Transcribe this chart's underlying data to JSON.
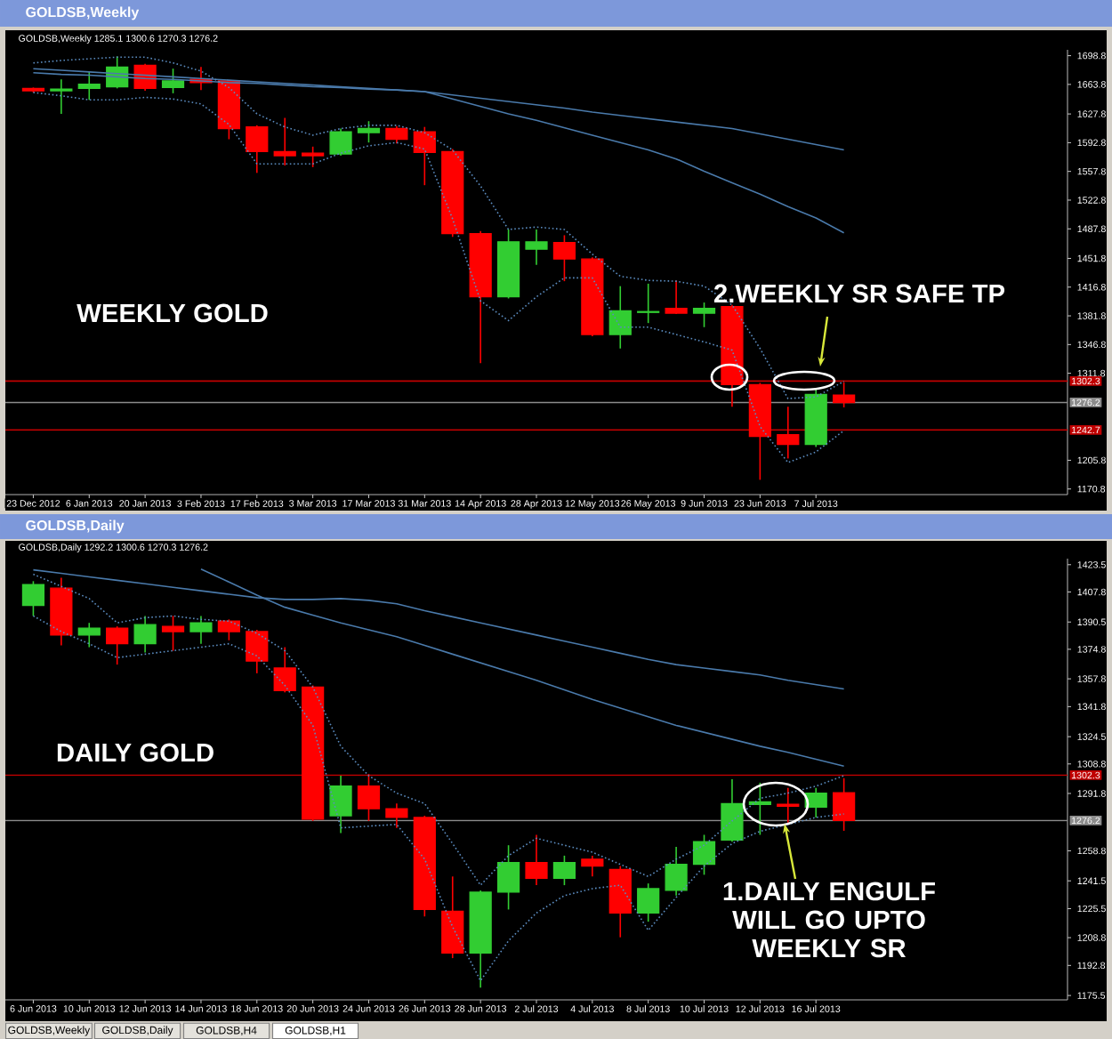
{
  "chart_data": [
    {
      "type": "candlestick",
      "title": "GOLDSB,Weekly",
      "subtitle": "GOLDSB,Weekly  1285.1 1300.6 1270.3 1276.2",
      "categories": [
        "23 Dec 2012",
        null,
        "6 Jan 2013",
        null,
        "20 Jan 2013",
        null,
        "3 Feb 2013",
        null,
        "17 Feb 2013",
        null,
        "3 Mar 2013",
        null,
        "17 Mar 2013",
        null,
        "31 Mar 2013",
        null,
        "14 Apr 2013",
        null,
        "28 Apr 2013",
        null,
        "12 May 2013",
        null,
        "26 May 2013",
        null,
        "9 Jun 2013",
        null,
        "23 Jun 2013",
        null,
        "7 Jul 2013",
        null
      ],
      "ohlc": [
        [
          1659,
          1660,
          1654,
          1656
        ],
        [
          1656,
          1670,
          1628,
          1658
        ],
        [
          1659,
          1679,
          1645,
          1664
        ],
        [
          1661,
          1698,
          1659,
          1685
        ],
        [
          1687,
          1689,
          1656,
          1659
        ],
        [
          1660,
          1683,
          1653,
          1668
        ],
        [
          1670,
          1685,
          1657,
          1666
        ],
        [
          1668,
          1669,
          1597,
          1610
        ],
        [
          1612,
          1614,
          1556,
          1582
        ],
        [
          1582,
          1623,
          1565,
          1577
        ],
        [
          1580,
          1588,
          1563,
          1577
        ],
        [
          1579,
          1610,
          1577,
          1606
        ],
        [
          1605,
          1619,
          1593,
          1610
        ],
        [
          1610,
          1613,
          1592,
          1597
        ],
        [
          1606,
          1612,
          1541,
          1581
        ],
        [
          1582,
          1585,
          1478,
          1482
        ],
        [
          1482,
          1485,
          1324,
          1405
        ],
        [
          1405,
          1487,
          1403,
          1472
        ],
        [
          1463,
          1487,
          1444,
          1472
        ],
        [
          1471,
          1480,
          1424,
          1451
        ],
        [
          1451,
          1453,
          1357,
          1359
        ],
        [
          1359,
          1418,
          1342,
          1388
        ],
        [
          1386,
          1421,
          1373,
          1387
        ],
        [
          1391,
          1425,
          1384,
          1385
        ],
        [
          1385,
          1398,
          1368,
          1391
        ],
        [
          1393,
          1395,
          1271,
          1298
        ],
        [
          1298,
          1300,
          1182,
          1235
        ],
        [
          1237,
          1271,
          1208,
          1225
        ],
        [
          1225,
          1292,
          1222,
          1286
        ],
        [
          1285.1,
          1300.6,
          1270.3,
          1276.2
        ]
      ],
      "colors": [
        "#ff0000",
        "#32cd32",
        "#32cd32",
        "#32cd32",
        "#ff0000",
        "#32cd32",
        "#ff0000",
        "#ff0000",
        "#ff0000",
        "#ff0000",
        "#ff0000",
        "#32cd32",
        "#32cd32",
        "#ff0000",
        "#ff0000",
        "#ff0000",
        "#ff0000",
        "#32cd32",
        "#32cd32",
        "#ff0000",
        "#ff0000",
        "#32cd32",
        "#32cd32",
        "#ff0000",
        "#32cd32",
        "#ff0000",
        "#ff0000",
        "#ff0000",
        "#32cd32",
        "#ff0000"
      ],
      "series": [
        {
          "type": "line",
          "color": "#4a7aab",
          "line_style": "solid",
          "values": [
            1683,
            1681,
            1679,
            1677,
            1675,
            1673,
            1671,
            1669,
            1667,
            1665,
            1663,
            1661,
            1659,
            1657,
            1655,
            1651,
            1647,
            1643,
            1639,
            1635,
            1630,
            1626,
            1622,
            1618,
            1614,
            1610,
            1603.5,
            1597,
            1590.5,
            1584
          ]
        },
        {
          "type": "line",
          "color": "#4a7aab",
          "line_style": "solid",
          "values": [
            1678,
            1676,
            1675,
            1673,
            1671,
            1670,
            1668,
            1666,
            1665,
            1663,
            1661,
            1660,
            1658,
            1657,
            1655,
            1646,
            1637,
            1628,
            1620,
            1611,
            1602,
            1593,
            1584,
            1573,
            1558,
            1544,
            1530,
            1515,
            1501,
            1483
          ]
        },
        {
          "type": "line",
          "color": "#5b8cc0",
          "line_style": "dotted",
          "values": [
            1690,
            1693,
            1695,
            1697,
            1697,
            1690,
            1680,
            1660,
            1628,
            1612,
            1602,
            1610,
            1614,
            1614,
            1605,
            1584,
            1540,
            1487,
            1490,
            1487,
            1457,
            1430,
            1425,
            1424,
            1418,
            1395,
            1342,
            1281,
            1283,
            1302
          ]
        },
        {
          "type": "line",
          "color": "#5b8cc0",
          "line_style": "dotted",
          "values": [
            1654,
            1650,
            1645,
            1645,
            1648,
            1646,
            1640,
            1615,
            1567,
            1567,
            1567,
            1580,
            1589,
            1593,
            1585,
            1500,
            1400,
            1376,
            1405,
            1428,
            1428,
            1368,
            1368,
            1359,
            1350,
            1340,
            1247,
            1203,
            1216,
            1242
          ]
        }
      ],
      "ylim": [
        1164,
        1706
      ],
      "yticks": [
        1698.8,
        1663.8,
        1627.8,
        1592.8,
        1557.8,
        1522.8,
        1487.8,
        1451.8,
        1416.8,
        1381.8,
        1346.8,
        1311.8,
        1205.8,
        1170.8
      ],
      "ref_lines": [
        {
          "axis": "y",
          "value": 1302.3,
          "label": "1302.3",
          "color": "#c00000"
        },
        {
          "axis": "y",
          "value": 1276.2,
          "label": "1276.2",
          "color": "#8c8c8c"
        },
        {
          "axis": "y",
          "value": 1242.7,
          "label": "1242.7",
          "color": "#c00000"
        }
      ],
      "annotations": [
        "WEEKLY GOLD",
        "2.WEEKLY SR SAFE TP"
      ]
    },
    {
      "type": "candlestick",
      "title": "GOLDSB,Daily",
      "subtitle": "GOLDSB,Daily  1292.2 1300.6 1270.3 1276.2",
      "categories": [
        "6 Jun 2013",
        null,
        "10 Jun 2013",
        null,
        "12 Jun 2013",
        null,
        "14 Jun 2013",
        null,
        "18 Jun 2013",
        null,
        "20 Jun 2013",
        null,
        "24 Jun 2013",
        null,
        "26 Jun 2013",
        null,
        "28 Jun 2013",
        null,
        "2 Jul 2013",
        null,
        "4 Jul 2013",
        null,
        "8 Jul 2013",
        null,
        "10 Jul 2013",
        null,
        "12 Jul 2013",
        null,
        "16 Jul 2013",
        null
      ],
      "ohlc": [
        [
          1400,
          1414,
          1394,
          1412
        ],
        [
          1410,
          1416,
          1377,
          1383
        ],
        [
          1383,
          1390,
          1376,
          1387
        ],
        [
          1387,
          1388,
          1366,
          1378
        ],
        [
          1378,
          1394,
          1373,
          1389
        ],
        [
          1388,
          1394,
          1374,
          1385
        ],
        [
          1385,
          1394,
          1378,
          1390
        ],
        [
          1391,
          1392,
          1380,
          1385
        ],
        [
          1385,
          1386,
          1361,
          1368
        ],
        [
          1364,
          1376,
          1350,
          1351
        ],
        [
          1353,
          1354,
          1276,
          1277
        ],
        [
          1279,
          1302,
          1269,
          1296
        ],
        [
          1296,
          1303,
          1276,
          1283
        ],
        [
          1283,
          1286,
          1272,
          1278
        ],
        [
          1278,
          1279,
          1221,
          1225
        ],
        [
          1224,
          1244,
          1197,
          1200
        ],
        [
          1200,
          1236,
          1180,
          1235
        ],
        [
          1235,
          1262,
          1225,
          1252
        ],
        [
          1252,
          1268,
          1239,
          1243
        ],
        [
          1243,
          1256,
          1239,
          1252
        ],
        [
          1254,
          1256,
          1244,
          1250
        ],
        [
          1248,
          1250,
          1209,
          1223
        ],
        [
          1223,
          1240,
          1218,
          1237
        ],
        [
          1236,
          1261,
          1233,
          1251
        ],
        [
          1251,
          1268,
          1245,
          1264
        ],
        [
          1265,
          1300,
          1264,
          1286
        ],
        [
          1285.5,
          1298,
          1268,
          1287
        ],
        [
          1285.5,
          1295,
          1275,
          1284.5
        ],
        [
          1284,
          1295,
          1278,
          1292
        ],
        [
          1292.2,
          1300.6,
          1270.3,
          1276.2
        ]
      ],
      "colors": [
        "#32cd32",
        "#ff0000",
        "#32cd32",
        "#ff0000",
        "#32cd32",
        "#ff0000",
        "#32cd32",
        "#ff0000",
        "#ff0000",
        "#ff0000",
        "#ff0000",
        "#32cd32",
        "#ff0000",
        "#ff0000",
        "#ff0000",
        "#ff0000",
        "#32cd32",
        "#32cd32",
        "#ff0000",
        "#32cd32",
        "#ff0000",
        "#ff0000",
        "#32cd32",
        "#32cd32",
        "#32cd32",
        "#32cd32",
        "#32cd32",
        "#ff0000",
        "#32cd32",
        "#ff0000"
      ],
      "series": [
        {
          "type": "line",
          "color": "#4a7aab",
          "line_style": "solid",
          "values": [
            1420.5,
            1418.5,
            1416.5,
            1414.5,
            1412.5,
            1410.5,
            1408.5,
            1406.5,
            1404.5,
            1403.5,
            1403.5,
            1404,
            1403,
            1401,
            1397,
            1393.5,
            1390,
            1386.5,
            1383,
            1379.5,
            1376,
            1372.5,
            1369,
            1366,
            1364,
            1362,
            1360,
            1357,
            1354.5,
            1352
          ]
        },
        {
          "type": "line",
          "color": "#4a7aab",
          "line_style": "solid",
          "values": [
            null,
            null,
            null,
            null,
            null,
            null,
            1421,
            1413.5,
            1406,
            1399,
            1394.5,
            1390,
            1386,
            1382,
            1377,
            1372,
            1367,
            1362,
            1357,
            1351.5,
            1346,
            1341,
            1336,
            1331,
            1327,
            1323,
            1319,
            1315.5,
            1311.5,
            1307.5
          ]
        },
        {
          "type": "line",
          "color": "#5b8cc0",
          "line_style": "dotted",
          "values": [
            1418,
            1411,
            1404,
            1390,
            1393,
            1394,
            1392,
            1391,
            1384,
            1374,
            1353,
            1319,
            1302,
            1292,
            1286,
            1263,
            1239,
            1256,
            1266,
            1262,
            1258,
            1251,
            1244,
            1254,
            1262,
            1276,
            1289,
            1292,
            1296,
            1302
          ]
        },
        {
          "type": "line",
          "color": "#5b8cc0",
          "line_style": "dotted",
          "values": [
            1394,
            1385,
            1378,
            1370,
            1372,
            1374,
            1376,
            1378,
            1371,
            1354,
            1331,
            1272,
            1273,
            1274,
            1254,
            1215,
            1184,
            1207,
            1223,
            1233,
            1237,
            1239,
            1213,
            1232,
            1250,
            1263,
            1270,
            1274,
            1278,
            1280
          ]
        }
      ],
      "ylim": [
        1173,
        1427
      ],
      "yticks": [
        1423.5,
        1407.8,
        1390.5,
        1374.8,
        1357.8,
        1341.8,
        1324.5,
        1308.8,
        1291.8,
        1258.8,
        1241.5,
        1225.5,
        1208.8,
        1192.8,
        1175.5
      ],
      "ref_lines": [
        {
          "axis": "y",
          "value": 1302.3,
          "label": "1302.3",
          "color": "#c00000"
        },
        {
          "axis": "y",
          "value": 1276.2,
          "label": "1276.2",
          "color": "#8c8c8c"
        }
      ],
      "annotations": [
        "DAILY GOLD",
        "1.DAILY ENGULF WILL GO UPTO WEEKLY SR",
        "GOLDSB,Weekly",
        "GOLDSB,Daily",
        "GOLDSB,H4",
        "GOLDSB,H1"
      ]
    }
  ]
}
